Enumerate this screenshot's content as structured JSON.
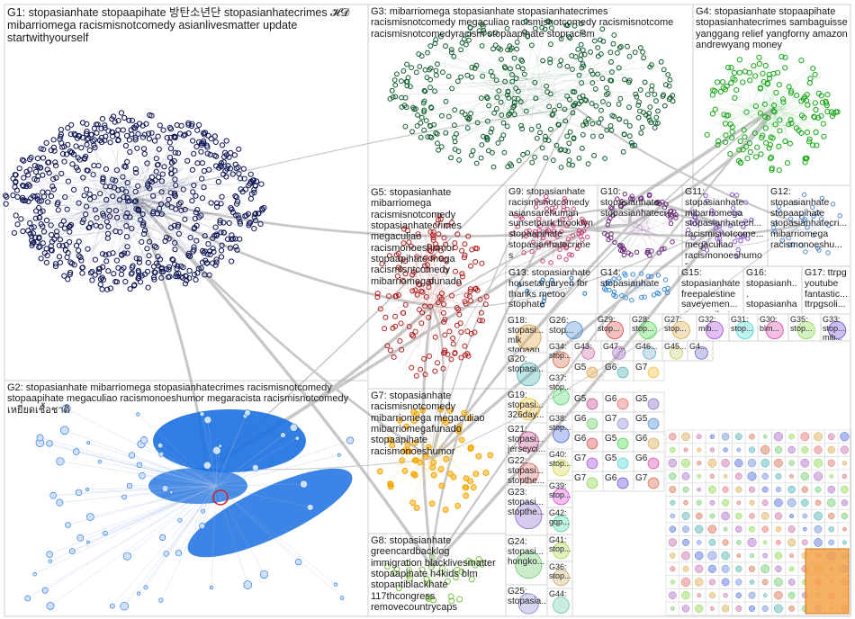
{
  "graph": {
    "groups": [
      {
        "id": "G1",
        "label": "G1: stopasianhate stopaapihate 방탄소년단 stopasianhatecrimes 𝓗𝓓 mibarriomega racismisnotcomedy asianlivesmatter update startwithyourself",
        "color": "#0d1452"
      },
      {
        "id": "G2",
        "label": "G2: stopasianhate mibarriomega stopasianhatecrimes racismisnotcomedy stopaapihate megaculiao racismonoeshumor megaracista racismisnotcomedy เหยียดเชื้อชาติ",
        "color": "#1a6fe0"
      },
      {
        "id": "G3",
        "label": "G3: mibarriomega stopasianhate stopasianhatecrimes racismisnotcomedy megaculiao racismisnotcomedy racismisnotcome racismisnotcomedyracism stopaapihate stopracism",
        "color": "#0d5a2a"
      },
      {
        "id": "G4",
        "label": "G4: stopasianhate stopaapihate stopasianhatecrimes sambaguisse yanggang relief yangforny amazon andrewyang money",
        "color": "#1aa81a"
      },
      {
        "id": "G5",
        "label": "G5: stopasianhate mibarriomega racismisnotcomedy stopasianhatecrimes megaculiao racismonoeshumor stopaapihate mega racismisntcomedy mibarriomegafunado",
        "color": "#b01c1c"
      },
      {
        "id": "G6",
        "label": "G6",
        "color": "#7a7a7a"
      },
      {
        "id": "G7",
        "label": "G7: stopasianhate racismisnotcomedy mibarriomega megaculiao mibarriomegafunado stopaapihate racismonoeshumor",
        "color": "#f5a500"
      },
      {
        "id": "G8",
        "label": "G8: stopasianhate greencardbacklog immigration blacklivesmatter stopaapihate h4kids blm stopantiblackhate 117thcongress removecountrycaps",
        "color": "#7fc24a"
      },
      {
        "id": "G9",
        "label": "G9: stopasianhate racismisnotcomedy asiansarehuman sunsetpark brooklyn stopaapihate stopasianhatecrimes",
        "color": "#c9427a"
      },
      {
        "id": "G10",
        "label": "G10: stopasianhate stopasianhatecri...",
        "color": "#6a2a7a"
      },
      {
        "id": "G11",
        "label": "G11: stopasianhate mibarriomega stopasianhatecri... racismisnotcome... megaculiao racismonoeshumor",
        "color": "#8a5ac8"
      },
      {
        "id": "G12",
        "label": "G12: stopasianhate stopaapihate stopasianhatecri... mibarriomega racismonoeshu...",
        "color": "#5a8acb"
      },
      {
        "id": "G13",
        "label": "G13: stopasianhate housetargaryen fbr thanks metoo stophate",
        "color": "#1f6bb0"
      },
      {
        "id": "G14",
        "label": "G14: stopasianhate",
        "color": "#3a8ad8"
      },
      {
        "id": "G15",
        "label": "G15: stopasianhate freepalestine saveyemen... stopaapihat...",
        "color": "#c88a2a"
      },
      {
        "id": "G16",
        "label": "G16: stopasianh... stopasianha...",
        "color": "#6aa8a8"
      },
      {
        "id": "G17",
        "label": "G17: ttrpg youtube fantastic... ttrpgsoli...",
        "color": "#e87a2a"
      }
    ],
    "small_group_labels": [
      {
        "text": "G18: stopasi... mlk stopaap...",
        "color": "#e0a040"
      },
      {
        "text": "G20: stopasi...",
        "color": "#4ab0b0"
      },
      {
        "text": "G19: stopasi... 326day...",
        "color": "#f0c030"
      },
      {
        "text": "G21: stopasi... jerseyci...",
        "color": "#c04a8a"
      },
      {
        "text": "G22: stopasi... stopthe...",
        "color": "#e06a6a"
      },
      {
        "text": "G23: stopasi... stopthe...",
        "color": "#8a6ac8"
      },
      {
        "text": "G24: stopasi... hongko...",
        "color": "#6ac86a"
      },
      {
        "text": "G25: stopasia...",
        "color": "#8a8ad8"
      },
      {
        "text": "G26: stop...",
        "color": "#4a8ad8"
      },
      {
        "text": "G29: stop...",
        "color": "#d84a4a"
      },
      {
        "text": "G28: stop...",
        "color": "#4ad84a"
      },
      {
        "text": "G27: stop...",
        "color": "#d8a84a"
      },
      {
        "text": "G32: mib...",
        "color": "#a84ad8"
      },
      {
        "text": "G31: stop...",
        "color": "#4ad8d8"
      },
      {
        "text": "G30: blm...",
        "color": "#d84aa8"
      },
      {
        "text": "G35: stop...",
        "color": "#8ad84a"
      },
      {
        "text": "G33: stop... mib...",
        "color": "#6a4ad8"
      },
      {
        "text": "G34: stop...",
        "color": "#d86a4a"
      },
      {
        "text": "G37: stop...",
        "color": "#4ad86a"
      },
      {
        "text": "G38: stop...",
        "color": "#4a6ad8"
      },
      {
        "text": "G40: stop...",
        "color": "#d8d84a"
      },
      {
        "text": "G39: stop...",
        "color": "#d84ad8"
      },
      {
        "text": "G42: gqp...",
        "color": "#4ad8a8"
      },
      {
        "text": "G41: stop...",
        "color": "#a8d84a"
      },
      {
        "text": "G36: stop...",
        "color": "#c8a86a"
      },
      {
        "text": "G44:",
        "color": "#6ac8a8"
      },
      {
        "text": "G43:",
        "color": "#c86aa8"
      },
      {
        "text": "G47...",
        "color": "#a86ac8"
      },
      {
        "text": "G46...",
        "color": "#6aa8c8"
      },
      {
        "text": "G45...",
        "color": "#c8c86a"
      },
      {
        "text": "G4...",
        "color": "#6a6ac8"
      }
    ],
    "tiny_cell_label": "G...",
    "tiny_cell_labels": [
      "G5",
      "G6",
      "G7",
      "G5",
      "G6",
      "G5",
      "G6",
      "G7",
      "G5",
      "G6",
      "G5",
      "G6",
      "G7",
      "G5",
      "G6",
      "G7",
      "G6",
      "G7"
    ]
  }
}
